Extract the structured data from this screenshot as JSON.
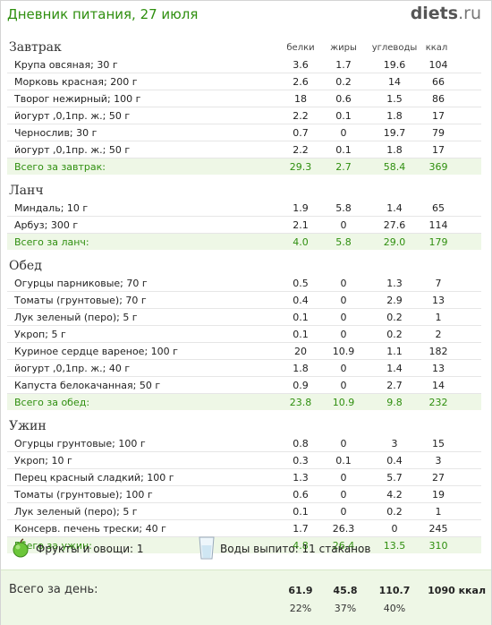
{
  "header": {
    "title": "Дневник питания, 27 июля",
    "logo_main": "diets",
    "logo_tld": ".ru"
  },
  "columns": {
    "protein": "белки",
    "fat": "жиры",
    "carbs": "углеводы",
    "kcal": "ккал"
  },
  "meals": [
    {
      "name": "Завтрак",
      "items": [
        {
          "food": "Крупа овсяная; 30 г",
          "protein": "3.6",
          "fat": "1.7",
          "carbs": "19.6",
          "kcal": "104"
        },
        {
          "food": "Морковь красная; 200 г",
          "protein": "2.6",
          "fat": "0.2",
          "carbs": "14",
          "kcal": "66"
        },
        {
          "food": "Творог нежирный; 100 г",
          "protein": "18",
          "fat": "0.6",
          "carbs": "1.5",
          "kcal": "86"
        },
        {
          "food": "йогурт ,0,1пр. ж.; 50 г",
          "protein": "2.2",
          "fat": "0.1",
          "carbs": "1.8",
          "kcal": "17"
        },
        {
          "food": "Чернослив; 30 г",
          "protein": "0.7",
          "fat": "0",
          "carbs": "19.7",
          "kcal": "79"
        },
        {
          "food": "йогурт ,0,1пр. ж.; 50 г",
          "protein": "2.2",
          "fat": "0.1",
          "carbs": "1.8",
          "kcal": "17"
        }
      ],
      "total": {
        "label": "Всего за завтрак:",
        "protein": "29.3",
        "fat": "2.7",
        "carbs": "58.4",
        "kcal": "369"
      }
    },
    {
      "name": "Ланч",
      "items": [
        {
          "food": "Миндаль; 10 г",
          "protein": "1.9",
          "fat": "5.8",
          "carbs": "1.4",
          "kcal": "65"
        },
        {
          "food": "Арбуз; 300 г",
          "protein": "2.1",
          "fat": "0",
          "carbs": "27.6",
          "kcal": "114"
        }
      ],
      "total": {
        "label": "Всего за ланч:",
        "protein": "4.0",
        "fat": "5.8",
        "carbs": "29.0",
        "kcal": "179"
      }
    },
    {
      "name": "Обед",
      "items": [
        {
          "food": "Огурцы парниковые; 70 г",
          "protein": "0.5",
          "fat": "0",
          "carbs": "1.3",
          "kcal": "7"
        },
        {
          "food": "Томаты (грунтовые); 70 г",
          "protein": "0.4",
          "fat": "0",
          "carbs": "2.9",
          "kcal": "13"
        },
        {
          "food": "Лук зеленый (перо); 5 г",
          "protein": "0.1",
          "fat": "0",
          "carbs": "0.2",
          "kcal": "1"
        },
        {
          "food": "Укроп; 5 г",
          "protein": "0.1",
          "fat": "0",
          "carbs": "0.2",
          "kcal": "2"
        },
        {
          "food": "Куриное сердце вареное; 100 г",
          "protein": "20",
          "fat": "10.9",
          "carbs": "1.1",
          "kcal": "182"
        },
        {
          "food": "йогурт ,0,1пр. ж.; 40 г",
          "protein": "1.8",
          "fat": "0",
          "carbs": "1.4",
          "kcal": "13"
        },
        {
          "food": "Капуста белокачанная; 50 г",
          "protein": "0.9",
          "fat": "0",
          "carbs": "2.7",
          "kcal": "14"
        }
      ],
      "total": {
        "label": "Всего за обед:",
        "protein": "23.8",
        "fat": "10.9",
        "carbs": "9.8",
        "kcal": "232"
      }
    },
    {
      "name": "Ужин",
      "items": [
        {
          "food": "Огурцы грунтовые; 100 г",
          "protein": "0.8",
          "fat": "0",
          "carbs": "3",
          "kcal": "15"
        },
        {
          "food": "Укроп; 10 г",
          "protein": "0.3",
          "fat": "0.1",
          "carbs": "0.4",
          "kcal": "3"
        },
        {
          "food": "Перец красный сладкий; 100 г",
          "protein": "1.3",
          "fat": "0",
          "carbs": "5.7",
          "kcal": "27"
        },
        {
          "food": "Томаты (грунтовые); 100 г",
          "protein": "0.6",
          "fat": "0",
          "carbs": "4.2",
          "kcal": "19"
        },
        {
          "food": "Лук зеленый (перо); 5 г",
          "protein": "0.1",
          "fat": "0",
          "carbs": "0.2",
          "kcal": "1"
        },
        {
          "food": "Консерв. печень трески; 40 г",
          "protein": "1.7",
          "fat": "26.3",
          "carbs": "0",
          "kcal": "245"
        }
      ],
      "total": {
        "label": "Всего за ужин:",
        "protein": "4.8",
        "fat": "26.4",
        "carbs": "13.5",
        "kcal": "310"
      }
    }
  ],
  "summary": {
    "fruits_text": "Фрукты и овощи: 1",
    "water_text": "Воды выпито: 11 стаканов",
    "fruits_icon": "apple-icon",
    "water_icon": "glass-icon"
  },
  "day_total": {
    "label": "Всего за день:",
    "protein": "61.9",
    "fat": "45.8",
    "carbs": "110.7",
    "kcal": "1090 ккал",
    "protein_pct": "22%",
    "fat_pct": "37%",
    "carbs_pct": "40%"
  },
  "colors": {
    "accent": "#2f8f0f",
    "total_bg": "#eef7e6"
  }
}
